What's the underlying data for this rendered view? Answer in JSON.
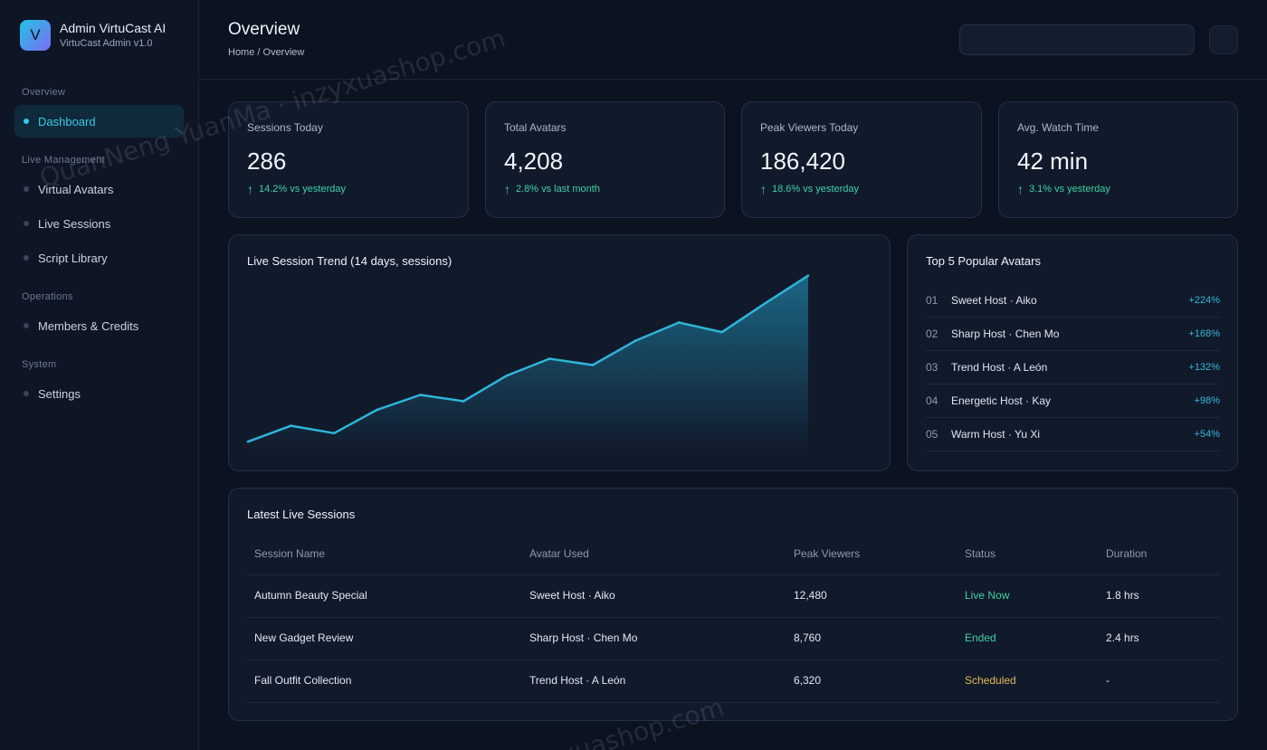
{
  "brand": {
    "logo_letter": "V",
    "title": "Admin VirtuCast AI",
    "subtitle": "VirtuCast Admin v1.0"
  },
  "sidebar": {
    "sections": [
      {
        "title": "Overview",
        "items": [
          {
            "label": "Dashboard",
            "active": true
          }
        ]
      },
      {
        "title": "Live Management",
        "items": [
          {
            "label": "Virtual Avatars"
          },
          {
            "label": "Live Sessions"
          },
          {
            "label": "Script Library"
          }
        ]
      },
      {
        "title": "Operations",
        "items": [
          {
            "label": "Members & Credits"
          }
        ]
      },
      {
        "title": "System",
        "items": [
          {
            "label": "Settings"
          }
        ]
      }
    ]
  },
  "header": {
    "title": "Overview",
    "breadcrumb": "Home / Overview",
    "search_value": ""
  },
  "stats": [
    {
      "label": "Sessions Today",
      "value": "286",
      "change": "14.2% vs yesterday"
    },
    {
      "label": "Total Avatars",
      "value": "4,208",
      "change": "2.8% vs last month"
    },
    {
      "label": "Peak Viewers Today",
      "value": "186,420",
      "change": "18.6% vs yesterday"
    },
    {
      "label": "Avg. Watch Time",
      "value": "42 min",
      "change": "3.1% vs yesterday"
    }
  ],
  "trend": {
    "title": "Live Session Trend (14 days, sessions)",
    "chart_data": {
      "type": "area",
      "title": "Live Session Trend (14 days, sessions)",
      "x": [
        1,
        2,
        3,
        4,
        5,
        6,
        7,
        8,
        9,
        10,
        11,
        12,
        13,
        14
      ],
      "values": [
        180,
        195,
        188,
        210,
        224,
        218,
        242,
        258,
        252,
        275,
        292,
        283,
        310,
        336
      ],
      "ylim": [
        170,
        340
      ],
      "grid": false,
      "line_color": "#2fb4d8"
    }
  },
  "top_avatars": {
    "title": "Top 5 Popular Avatars",
    "items": [
      {
        "rank": "01",
        "name": "Sweet Host · Aiko",
        "pct": "+224%"
      },
      {
        "rank": "02",
        "name": "Sharp Host · Chen Mo",
        "pct": "+168%"
      },
      {
        "rank": "03",
        "name": "Trend Host · A León",
        "pct": "+132%"
      },
      {
        "rank": "04",
        "name": "Energetic Host · Kay",
        "pct": "+98%"
      },
      {
        "rank": "05",
        "name": "Warm Host · Yu Xi",
        "pct": "+54%"
      }
    ]
  },
  "sessions": {
    "title": "Latest Live Sessions",
    "columns": [
      "Session Name",
      "Avatar Used",
      "Peak Viewers",
      "Status",
      "Duration"
    ],
    "rows": [
      {
        "name": "Autumn Beauty Special",
        "avatar": "Sweet Host · Aiko",
        "viewers": "12,480",
        "status": "Live Now",
        "duration": "1.8 hrs"
      },
      {
        "name": "New Gadget Review",
        "avatar": "Sharp Host · Chen Mo",
        "viewers": "8,760",
        "status": "Ended",
        "duration": "2.4 hrs"
      },
      {
        "name": "Fall Outfit Collection",
        "avatar": "Trend Host · A León",
        "viewers": "6,320",
        "status": "Scheduled",
        "duration": "-"
      }
    ]
  },
  "watermark": {
    "line1": "QuanNeng YuanMa · inzyxuashop.com",
    "line2": "zyxuashop.com"
  }
}
